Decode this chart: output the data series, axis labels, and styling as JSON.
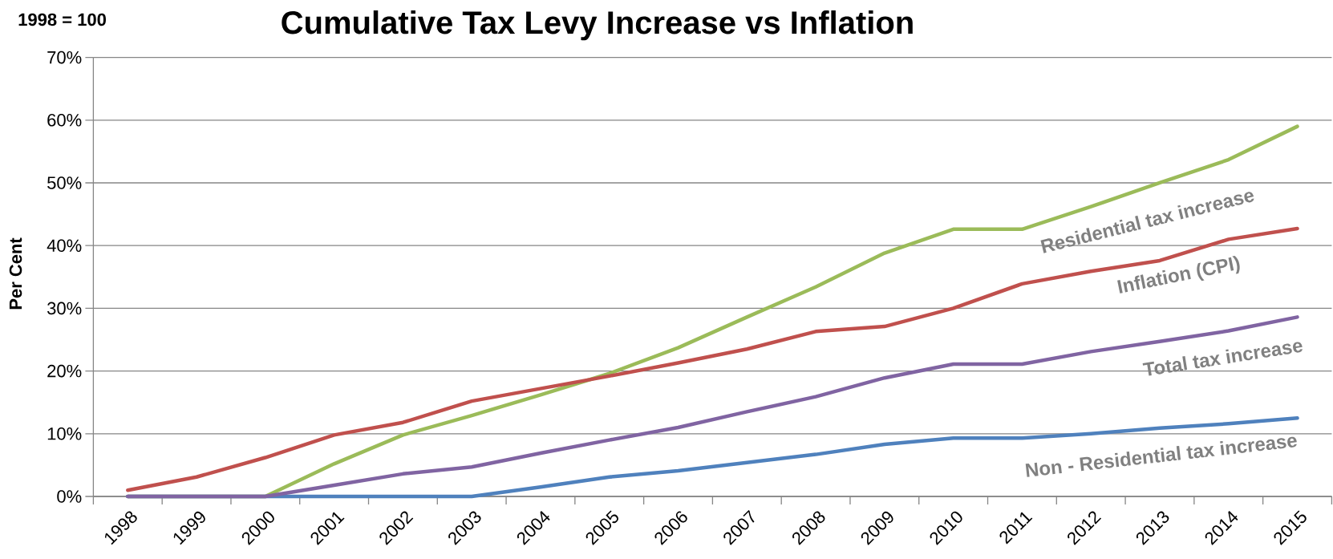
{
  "chart_data": {
    "type": "line",
    "title": "Cumulative Tax Levy Increase vs Inflation",
    "ylabel": "Per Cent",
    "annotations": [
      "1998 = 100"
    ],
    "categories": [
      "1998",
      "1999",
      "2000",
      "2001",
      "2002",
      "2003",
      "2004",
      "2005",
      "2006",
      "2007",
      "2008",
      "2009",
      "2010",
      "2011",
      "2012",
      "2013",
      "2014",
      "2015"
    ],
    "ylim": [
      0,
      70
    ],
    "yticks": [
      {
        "value": 0,
        "label": "0%"
      },
      {
        "value": 10,
        "label": "10%"
      },
      {
        "value": 20,
        "label": "20%"
      },
      {
        "value": 30,
        "label": "30%"
      },
      {
        "value": 40,
        "label": "40%"
      },
      {
        "value": 50,
        "label": "50%"
      },
      {
        "value": 60,
        "label": "60%"
      },
      {
        "value": 70,
        "label": "70%"
      }
    ],
    "grid": "y",
    "marker": "none",
    "line_style": "solid",
    "series": [
      {
        "name": "Residential tax increase",
        "color": "#9bbb59",
        "values": [
          0,
          0,
          0,
          5.2,
          9.8,
          12.9,
          16.2,
          19.6,
          23.7,
          28.6,
          33.4,
          38.8,
          42.6,
          42.6,
          46.2,
          50.0,
          53.7,
          59.0
        ]
      },
      {
        "name": "Inflation (CPI)",
        "color": "#c0504d",
        "values": [
          1.0,
          3.1,
          6.2,
          9.8,
          11.8,
          15.2,
          17.2,
          19.2,
          21.3,
          23.5,
          26.3,
          27.1,
          30.0,
          33.9,
          35.9,
          37.6,
          41.0,
          42.7
        ]
      },
      {
        "name": "Non - Residential tax increase",
        "color": "#4f81bd",
        "values": [
          0,
          0,
          0,
          0,
          0,
          0,
          1.5,
          3.1,
          4.1,
          5.4,
          6.7,
          8.3,
          9.3,
          9.3,
          10.0,
          10.9,
          11.6,
          12.5
        ]
      },
      {
        "name": "Total  tax increase",
        "color": "#8064a2",
        "values": [
          0,
          0,
          0,
          1.8,
          3.6,
          4.7,
          6.9,
          9.0,
          11.0,
          13.5,
          15.9,
          18.9,
          21.1,
          21.1,
          23.1,
          24.7,
          26.4,
          28.6
        ]
      }
    ]
  }
}
